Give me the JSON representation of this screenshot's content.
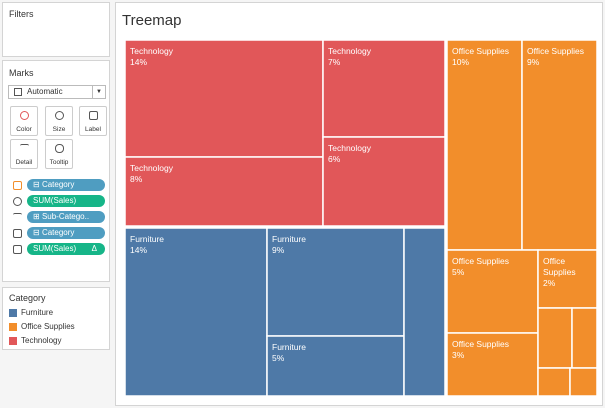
{
  "filters": {
    "title": "Filters"
  },
  "marks": {
    "title": "Marks",
    "mark_type": "Automatic",
    "buttons": [
      "Color",
      "Size",
      "Label",
      "Detail",
      "Tooltip"
    ],
    "pills": [
      "Category",
      "SUM(Sales)",
      "Sub-Catego..",
      "Category",
      "SUM(Sales)"
    ],
    "pill_flag": "Δ"
  },
  "chart_data": {
    "type": "treemap",
    "title": "Treemap",
    "legend_title": "Category",
    "series": [
      {
        "name": "Technology",
        "color": "#e15759",
        "values": [
          14,
          7,
          8,
          6
        ],
        "value_labels": [
          "14%",
          "7%",
          "8%",
          "6%"
        ]
      },
      {
        "name": "Furniture",
        "color": "#4e79a7",
        "values": [
          14,
          9,
          5,
          4
        ],
        "value_labels": [
          "14%",
          "9%",
          "5%",
          null
        ]
      },
      {
        "name": "Office Supplies",
        "color": "#f28e2b",
        "values": [
          10,
          9,
          5,
          2,
          3,
          1.2,
          0.9,
          0.5,
          0.4
        ],
        "value_labels": [
          "10%",
          "9%",
          "5%",
          "2%",
          "3%",
          null,
          null,
          null,
          null
        ]
      }
    ],
    "legend_order": [
      1,
      2,
      0
    ]
  }
}
